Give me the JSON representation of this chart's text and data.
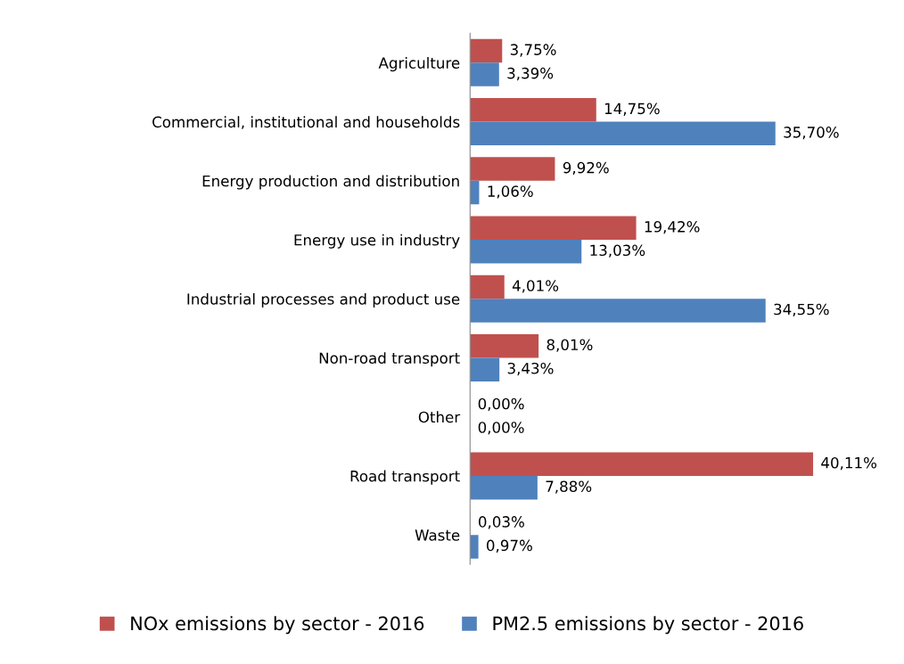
{
  "chart_data": {
    "type": "bar",
    "orientation": "horizontal",
    "categories": [
      "Agriculture",
      "Commercial, institutional and households",
      "Energy production and distribution",
      "Energy use in industry",
      "Industrial processes and product use",
      "Non-road transport",
      "Other",
      "Road transport",
      "Waste"
    ],
    "series": [
      {
        "name": "NOx emissions by sector - 2016",
        "color": "#c0504d",
        "values": [
          3.75,
          14.75,
          9.92,
          19.42,
          4.01,
          8.01,
          0.0,
          40.11,
          0.03
        ],
        "value_labels": [
          "3,75%",
          "14,75%",
          "9,92%",
          "19,42%",
          "4,01%",
          "8,01%",
          "0,00%",
          "40,11%",
          "0,03%"
        ]
      },
      {
        "name": "PM2.5 emissions by sector - 2016",
        "color": "#4f81bd",
        "values": [
          3.39,
          35.7,
          1.06,
          13.03,
          34.55,
          3.43,
          0.0,
          7.88,
          0.97
        ],
        "value_labels": [
          "3,39%",
          "35,70%",
          "1,06%",
          "13,03%",
          "34,55%",
          "3,43%",
          "0,00%",
          "7,88%",
          "0,97%"
        ]
      }
    ],
    "tick_labels": "y",
    "grid": false,
    "legend": "bottom"
  }
}
